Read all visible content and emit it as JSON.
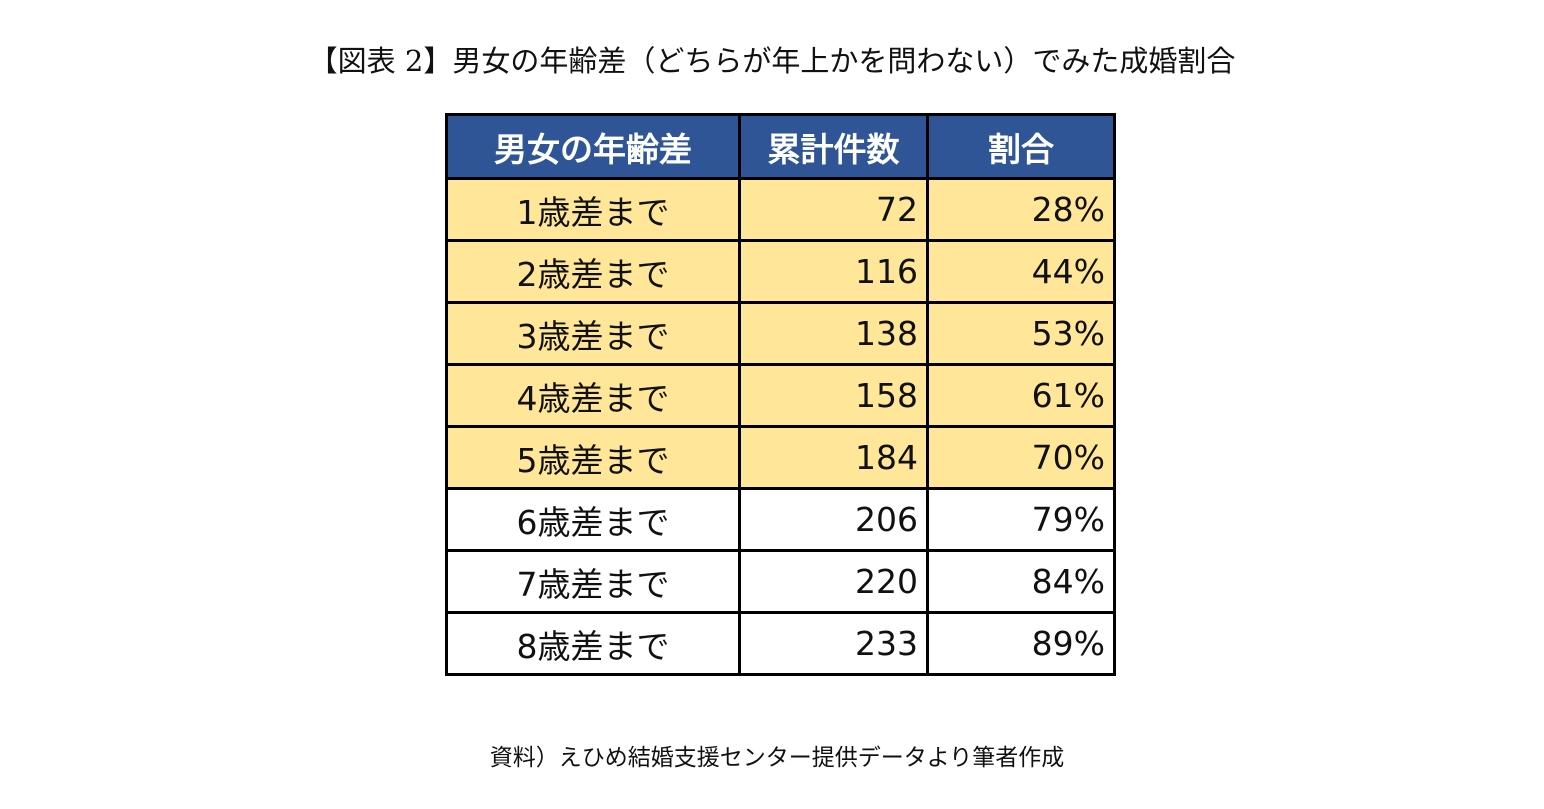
{
  "title": "【図表 2】男女の年齢差（どちらが年上かを問わない）でみた成婚割合",
  "table": {
    "header": [
      "男女の年齢差",
      "累計件数",
      "割合"
    ],
    "rows": [
      [
        "1歳差まで",
        "72",
        "28%"
      ],
      [
        "2歳差まで",
        "116",
        "44%"
      ],
      [
        "3歳差まで",
        "138",
        "53%"
      ],
      [
        "4歳差まで",
        "158",
        "61%"
      ],
      [
        "5歳差まで",
        "184",
        "70%"
      ],
      [
        "6歳差まで",
        "206",
        "79%"
      ],
      [
        "7歳差まで",
        "220",
        "84%"
      ],
      [
        "8歳差まで",
        "233",
        "89%"
      ]
    ]
  },
  "source": "資料）えひめ結婚支援センター提供データより筆者作成"
}
